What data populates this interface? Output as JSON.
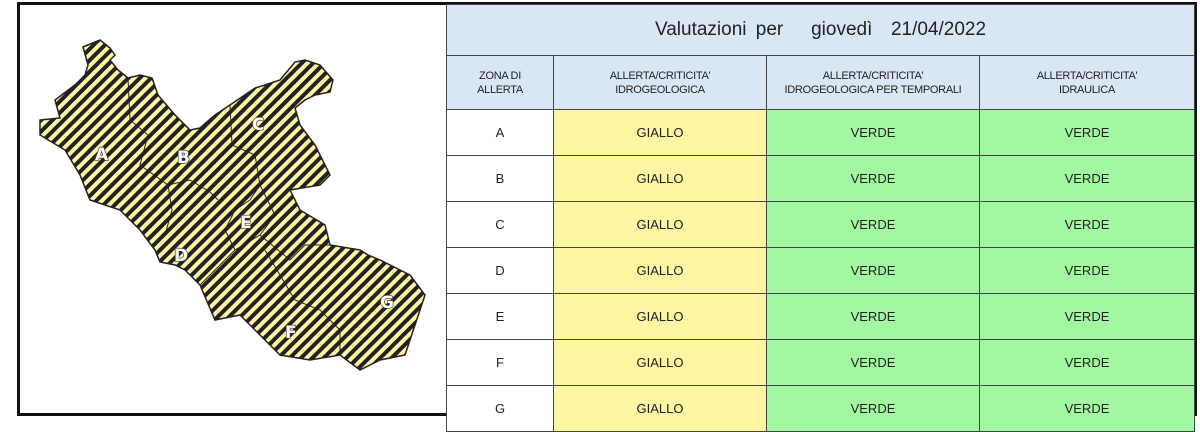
{
  "title": {
    "prefix": "Valutazioni per",
    "day": "giovedì",
    "date": "21/04/2022"
  },
  "columns": [
    "ZONA DI ALLERTA",
    "ALLERTA/CRITICITA' IDROGEOLOGICA",
    "ALLERTA/CRITICITA' IDROGEOLOGICA PER TEMPORALI",
    "ALLERTA/CRITICITA' IDRAULICA"
  ],
  "columns_lines": [
    [
      "ZONA DI",
      "ALLERTA"
    ],
    [
      "ALLERTA/CRITICITA'",
      "IDROGEOLOGICA"
    ],
    [
      "ALLERTA/CRITICITA'",
      "IDROGEOLOGICA PER TEMPORALI"
    ],
    [
      "ALLERTA/CRITICITA'",
      "IDRAULICA"
    ]
  ],
  "rows": [
    {
      "zone": "A",
      "idrogeologica": "GIALLO",
      "temporali": "VERDE",
      "idraulica": "VERDE"
    },
    {
      "zone": "B",
      "idrogeologica": "GIALLO",
      "temporali": "VERDE",
      "idraulica": "VERDE"
    },
    {
      "zone": "C",
      "idrogeologica": "GIALLO",
      "temporali": "VERDE",
      "idraulica": "VERDE"
    },
    {
      "zone": "D",
      "idrogeologica": "GIALLO",
      "temporali": "VERDE",
      "idraulica": "VERDE"
    },
    {
      "zone": "E",
      "idrogeologica": "GIALLO",
      "temporali": "VERDE",
      "idraulica": "VERDE"
    },
    {
      "zone": "F",
      "idrogeologica": "GIALLO",
      "temporali": "VERDE",
      "idraulica": "VERDE"
    },
    {
      "zone": "G",
      "idrogeologica": "GIALLO",
      "temporali": "VERDE",
      "idraulica": "VERDE"
    }
  ],
  "map": {
    "labels": [
      "A",
      "B",
      "C",
      "D",
      "E",
      "F",
      "G"
    ],
    "fill_pattern": "yellow-black-diagonal-stripes",
    "level": "GIALLO"
  },
  "colors": {
    "giallo": "#fef5a3",
    "verde": "#a4f7a1",
    "header": "#d9e6f4",
    "stripe_dark": "#222222"
  }
}
